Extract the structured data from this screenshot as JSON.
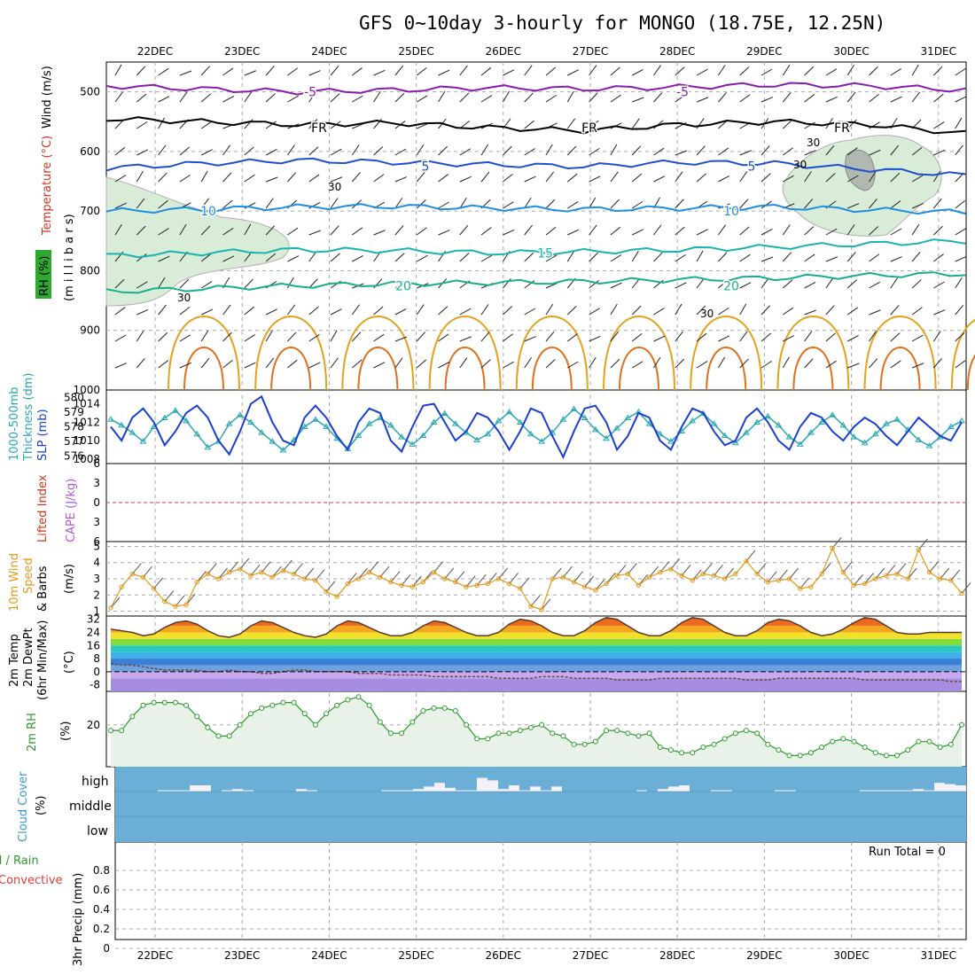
{
  "title": "GFS 0~10day 3-hourly for MONGO (18.75E, 12.25N)",
  "days": [
    "22DEC",
    "23DEC",
    "24DEC",
    "25DEC",
    "26DEC",
    "27DEC",
    "28DEC",
    "29DEC",
    "30DEC",
    "31DEC"
  ],
  "panel_labels": {
    "upper_air": {
      "wind": "Wind (m/s)",
      "temp": "Temperature (°C)",
      "rh": "RH (%)",
      "units": "(m i l l i b a r s)"
    },
    "thickness": {
      "main": "1000-500mb",
      "sub": "Thickness (dm)",
      "slp": "SLP (mb)"
    },
    "stability": {
      "li": "Lifted Index",
      "cape": "CAPE (J/kg)"
    },
    "wind10": {
      "a": "10m Wind",
      "b": "Speed",
      "c": "& Barbs",
      "unit": "(m/s)"
    },
    "temp2m": {
      "a": "2m Temp",
      "b": "2m DewPt",
      "c": "(6hr Min/Max)",
      "unit": "(°C)"
    },
    "rh2m": {
      "a": "2m RH",
      "unit": "(%)"
    },
    "cloud": {
      "a": "Cloud Cover",
      "unit": "(%)"
    },
    "precip": {
      "a": "Total / Rain",
      "b": "Convective",
      "c": "3hr Precip (mm)",
      "run_total": "Run Total = 0"
    }
  },
  "colors": {
    "temp_minus5": "#8a1bb0",
    "temp_0": "#000000",
    "temp_5": "#1f4fd0",
    "temp_10": "#1e8fe0",
    "temp_15": "#19b3b0",
    "temp_20": "#18b08a",
    "rh_fill": "#d8ecd8",
    "thickness": "#2aa8b0",
    "slp": "#1a3fd0",
    "wind_speed": "#e39a1c",
    "rh2m": "#2e9a2e",
    "cloud": "#6baed6",
    "grid": "#aaaaaa"
  },
  "chart_data": [
    {
      "type": "line",
      "name": "upper_air_cross_section",
      "y_axis": {
        "label": "millibars",
        "reversed": true,
        "ylim": [
          450,
          1000
        ],
        "ticks": [
          500,
          600,
          700,
          800,
          900,
          1000
        ]
      },
      "isotherm_labels": [
        {
          "value": "-5",
          "pressure": 500
        },
        {
          "value": "FR",
          "pressure": 560
        },
        {
          "value": "5",
          "pressure": 625
        },
        {
          "value": "10",
          "pressure": 700
        },
        {
          "value": "15",
          "pressure": 770
        },
        {
          "value": "20",
          "pressure": 825
        }
      ],
      "isotherm_levels": [
        {
          "label": "-5",
          "pressures": [
            490,
            495,
            500,
            497,
            493,
            495,
            492,
            488,
            490,
            497
          ]
        },
        {
          "label": "FR",
          "pressures": [
            545,
            550,
            555,
            552,
            560,
            565,
            555,
            550,
            555,
            570
          ]
        },
        {
          "label": "5",
          "pressures": [
            628,
            620,
            615,
            618,
            622,
            625,
            618,
            620,
            630,
            640
          ]
        },
        {
          "label": "10",
          "pressures": [
            700,
            697,
            693,
            692,
            695,
            697,
            695,
            693,
            698,
            702
          ]
        },
        {
          "label": "15",
          "pressures": [
            775,
            770,
            765,
            766,
            770,
            768,
            765,
            760,
            755,
            750
          ]
        },
        {
          "label": "20",
          "pressures": [
            835,
            830,
            825,
            822,
            820,
            818,
            815,
            812,
            808,
            805
          ]
        }
      ],
      "rh_shaded_label": "30"
    },
    {
      "type": "line",
      "name": "thickness_and_slp",
      "thickness_ylim": [
        575.5,
        580.5
      ],
      "thickness_ticks": [
        576,
        577,
        578,
        579,
        580
      ],
      "slp_ylim": [
        1007.5,
        1015.5
      ],
      "slp_ticks": [
        1008,
        1010,
        1012,
        1014
      ],
      "series": [
        {
          "name": "1000-500mb",
          "axis": "thickness",
          "values": [
            578.5,
            578.1,
            577.6,
            577.0,
            578.0,
            578.6,
            579.1,
            578.4,
            577.5,
            576.6,
            577.0,
            578.2,
            578.8,
            578.3,
            577.6,
            577.0,
            576.4,
            577.1,
            578.0,
            578.5,
            578.0,
            577.2,
            576.5,
            577.4,
            578.2,
            578.6,
            578.1,
            577.3,
            576.8,
            577.4,
            578.3,
            578.9,
            578.2,
            577.6,
            577.1,
            577.5,
            578.4,
            579.0,
            578.3,
            577.5,
            577.0,
            577.6,
            578.5,
            579.2,
            578.6,
            577.8,
            577.2,
            577.9,
            578.6,
            579.0,
            578.2,
            577.5,
            577.0,
            577.7,
            578.4,
            578.9,
            578.2,
            577.4,
            576.9,
            577.6,
            578.3,
            578.7,
            578.1,
            577.3,
            576.8,
            577.6,
            578.3,
            578.8,
            578.1,
            577.3,
            576.9,
            577.5,
            578.2,
            578.5,
            577.8,
            577.1,
            576.7,
            577.3,
            578.0,
            578.4
          ]
        },
        {
          "name": "SLP",
          "axis": "slp",
          "values": [
            1011.5,
            1010.0,
            1012.5,
            1013.5,
            1012.0,
            1009.5,
            1011.0,
            1013.0,
            1013.8,
            1012.5,
            1010.0,
            1008.5,
            1011.0,
            1014.0,
            1014.8,
            1012.0,
            1010.0,
            1009.5,
            1012.5,
            1013.8,
            1012.5,
            1010.5,
            1009.0,
            1012.0,
            1013.5,
            1013.0,
            1010.0,
            1008.8,
            1011.5,
            1013.8,
            1014.0,
            1012.0,
            1010.0,
            1011.0,
            1013.0,
            1012.5,
            1011.0,
            1009.0,
            1011.0,
            1013.5,
            1013.0,
            1010.5,
            1008.2,
            1011.0,
            1013.5,
            1013.8,
            1012.0,
            1009.0,
            1010.5,
            1013.0,
            1012.5,
            1010.0,
            1009.0,
            1011.5,
            1013.5,
            1013.0,
            1011.0,
            1009.5,
            1010.0,
            1012.5,
            1013.5,
            1012.0,
            1010.0,
            1009.0,
            1011.5,
            1013.0,
            1012.5,
            1011.0,
            1010.0,
            1011.5,
            1012.5,
            1011.8,
            1010.5,
            1009.5,
            1011.0,
            1012.5,
            1011.5,
            1010.5,
            1010.0,
            1012.0
          ]
        }
      ]
    },
    {
      "type": "line",
      "name": "stability",
      "ylim": [
        -6,
        6
      ],
      "ticks": [
        -6,
        -3,
        0,
        3,
        6
      ],
      "tick_labels": [
        "6",
        "3",
        "0",
        "3",
        "6"
      ],
      "series": [
        {
          "name": "Lifted Index",
          "values": []
        },
        {
          "name": "CAPE",
          "values": []
        }
      ]
    },
    {
      "type": "line",
      "name": "wind10m",
      "ylim": [
        1,
        5
      ],
      "ticks": [
        1,
        2,
        3,
        4,
        5
      ],
      "series": [
        {
          "name": "10m Wind Speed",
          "values": [
            1.2,
            2.5,
            3.3,
            3.1,
            2.4,
            1.6,
            1.3,
            1.4,
            2.8,
            3.3,
            3.0,
            3.4,
            3.6,
            3.2,
            3.4,
            3.1,
            3.5,
            3.3,
            3.0,
            2.9,
            2.2,
            1.9,
            2.7,
            3.0,
            3.4,
            3.1,
            2.8,
            2.6,
            2.5,
            2.8,
            3.4,
            3.0,
            2.8,
            2.5,
            2.6,
            2.7,
            3.0,
            2.7,
            2.4,
            1.3,
            1.1,
            3.0,
            3.1,
            2.8,
            2.5,
            2.3,
            2.7,
            3.2,
            3.3,
            2.6,
            3.1,
            3.4,
            3.6,
            3.2,
            2.9,
            3.3,
            3.2,
            3.0,
            3.3,
            4.1,
            3.3,
            2.8,
            2.9,
            3.0,
            2.4,
            2.5,
            3.3,
            4.9,
            3.4,
            2.6,
            2.7,
            3.0,
            3.2,
            3.3,
            3.0,
            4.8,
            3.4,
            3.0,
            2.9,
            2.1
          ]
        }
      ]
    },
    {
      "type": "area",
      "name": "temp2m",
      "ylim": [
        -12,
        34
      ],
      "ticks": [
        -8,
        0,
        8,
        16,
        24,
        32
      ],
      "series": [
        {
          "name": "2m Temp",
          "values": [
            26,
            25,
            24,
            22,
            23,
            27,
            30,
            31,
            29,
            25,
            22,
            21,
            23,
            28,
            31,
            30,
            27,
            24,
            22,
            21,
            23,
            28,
            31,
            30,
            27,
            24,
            22,
            22,
            24,
            28,
            31,
            30,
            27,
            24,
            22,
            22,
            24,
            29,
            32,
            31,
            28,
            24,
            22,
            22,
            25,
            30,
            33,
            32,
            28,
            24,
            22,
            22,
            25,
            30,
            33,
            32,
            28,
            24,
            22,
            22,
            25,
            30,
            32,
            31,
            28,
            24,
            22,
            23,
            26,
            30,
            33,
            32,
            28,
            24,
            23,
            23,
            24,
            24,
            24,
            24
          ]
        },
        {
          "name": "2m DewPt",
          "values": [
            5,
            4,
            4,
            3,
            2,
            1,
            1,
            1,
            1,
            0,
            0,
            1,
            0,
            0,
            -1,
            -1,
            0,
            1,
            1,
            0,
            0,
            0,
            0,
            -1,
            -1,
            -1,
            -2,
            -2,
            -2,
            -2,
            -3,
            -3,
            -3,
            -3,
            -3,
            -3,
            -4,
            -4,
            -4,
            -4,
            -3,
            -3,
            -3,
            -4,
            -4,
            -4,
            -4,
            -5,
            -5,
            -5,
            -5,
            -4,
            -4,
            -4,
            -4,
            -4,
            -4,
            -4,
            -4,
            -5,
            -5,
            -5,
            -4,
            -4,
            -4,
            -4,
            -4,
            -4,
            -4,
            -4,
            -5,
            -5,
            -5,
            -5,
            -5,
            -5,
            -5,
            -5,
            -6,
            -6
          ]
        }
      ]
    },
    {
      "type": "area",
      "name": "rh2m",
      "ylim": [
        5,
        32
      ],
      "ticks": [
        20
      ],
      "series": [
        {
          "name": "2m RH",
          "values": [
            18,
            18,
            23,
            27,
            28,
            28,
            28,
            27,
            23,
            19,
            16,
            16,
            20,
            24,
            26,
            27,
            28,
            28,
            24,
            20,
            24,
            27,
            29,
            30,
            27,
            21,
            17,
            17,
            21,
            25,
            26,
            26,
            25,
            20,
            15,
            15,
            17,
            17,
            18,
            19,
            20,
            17,
            16,
            13,
            13,
            14,
            18,
            18,
            17,
            16,
            17,
            12,
            11,
            10,
            10,
            12,
            13,
            15,
            17,
            18,
            17,
            13,
            11,
            9,
            9,
            10,
            12,
            14,
            15,
            14,
            12,
            10,
            9,
            9,
            11,
            14,
            14,
            12,
            13,
            20
          ]
        }
      ]
    },
    {
      "type": "bar",
      "name": "cloud_cover",
      "levels": [
        "high",
        "middle",
        "low"
      ],
      "series": [
        {
          "name": "high",
          "values": [
            0,
            0,
            0,
            0,
            5,
            5,
            5,
            25,
            25,
            0,
            5,
            10,
            5,
            0,
            0,
            0,
            0,
            10,
            5,
            0,
            0,
            0,
            0,
            0,
            0,
            5,
            5,
            5,
            10,
            20,
            35,
            15,
            5,
            5,
            55,
            45,
            10,
            25,
            5,
            20,
            5,
            20,
            0,
            0,
            0,
            0,
            0,
            0,
            0,
            5,
            0,
            10,
            20,
            25,
            0,
            0,
            5,
            5,
            0,
            0,
            0,
            0,
            5,
            5,
            0,
            0,
            0,
            0,
            0,
            0,
            5,
            5,
            5,
            5,
            5,
            10,
            5,
            35,
            30,
            25
          ]
        }
      ]
    },
    {
      "type": "bar",
      "name": "precip",
      "ylim": [
        0,
        1
      ],
      "ticks": [
        0,
        0.2,
        0.4,
        0.6,
        0.8
      ],
      "series": [
        {
          "name": "3hr Precip",
          "values": []
        }
      ]
    }
  ]
}
